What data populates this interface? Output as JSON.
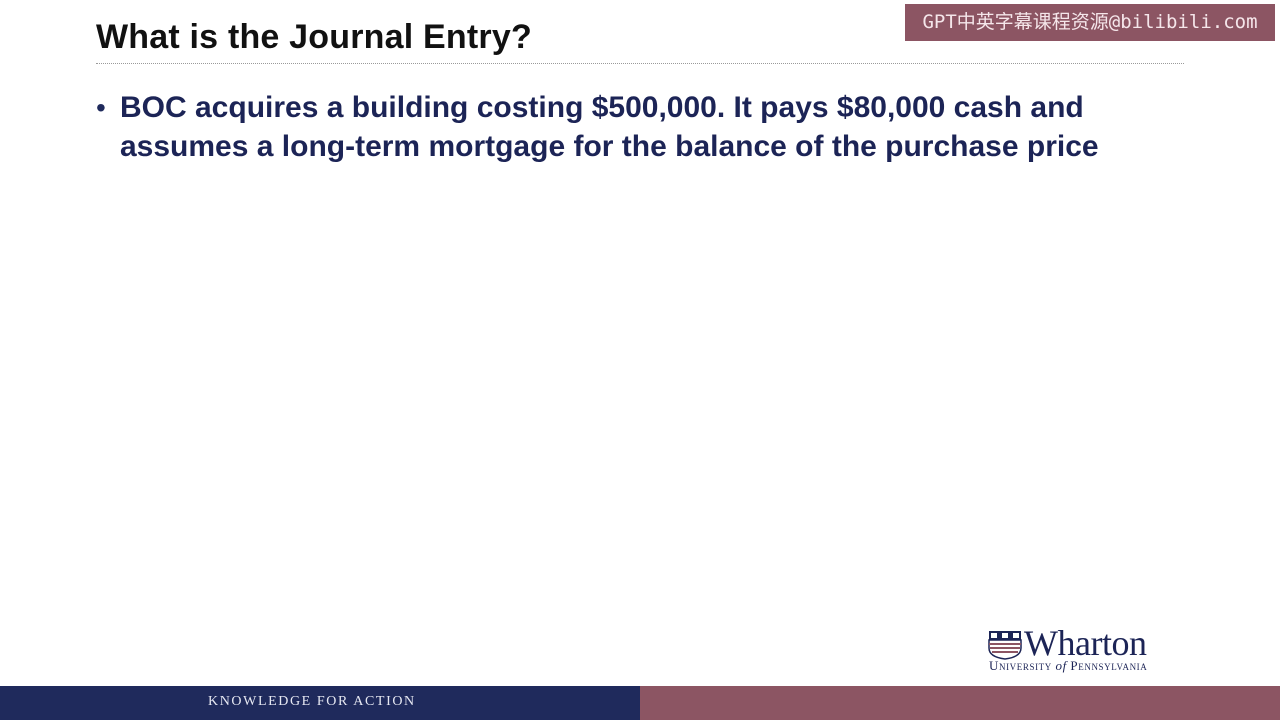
{
  "watermark": "GPT中英字幕课程资源@bilibili.com",
  "slide": {
    "title": "What is the Journal Entry?",
    "bullets": [
      "BOC acquires a building costing $500,000.  It pays $80,000 cash and assumes a long-term mortgage for the balance of the purchase price"
    ]
  },
  "logo": {
    "wordmark": "Wharton",
    "university": "University",
    "of": "of",
    "state": "Pennsylvania"
  },
  "footer": {
    "tagline": "KNOWLEDGE FOR ACTION"
  },
  "colors": {
    "navy": "#1f2a5c",
    "maroon": "#8c5563"
  }
}
